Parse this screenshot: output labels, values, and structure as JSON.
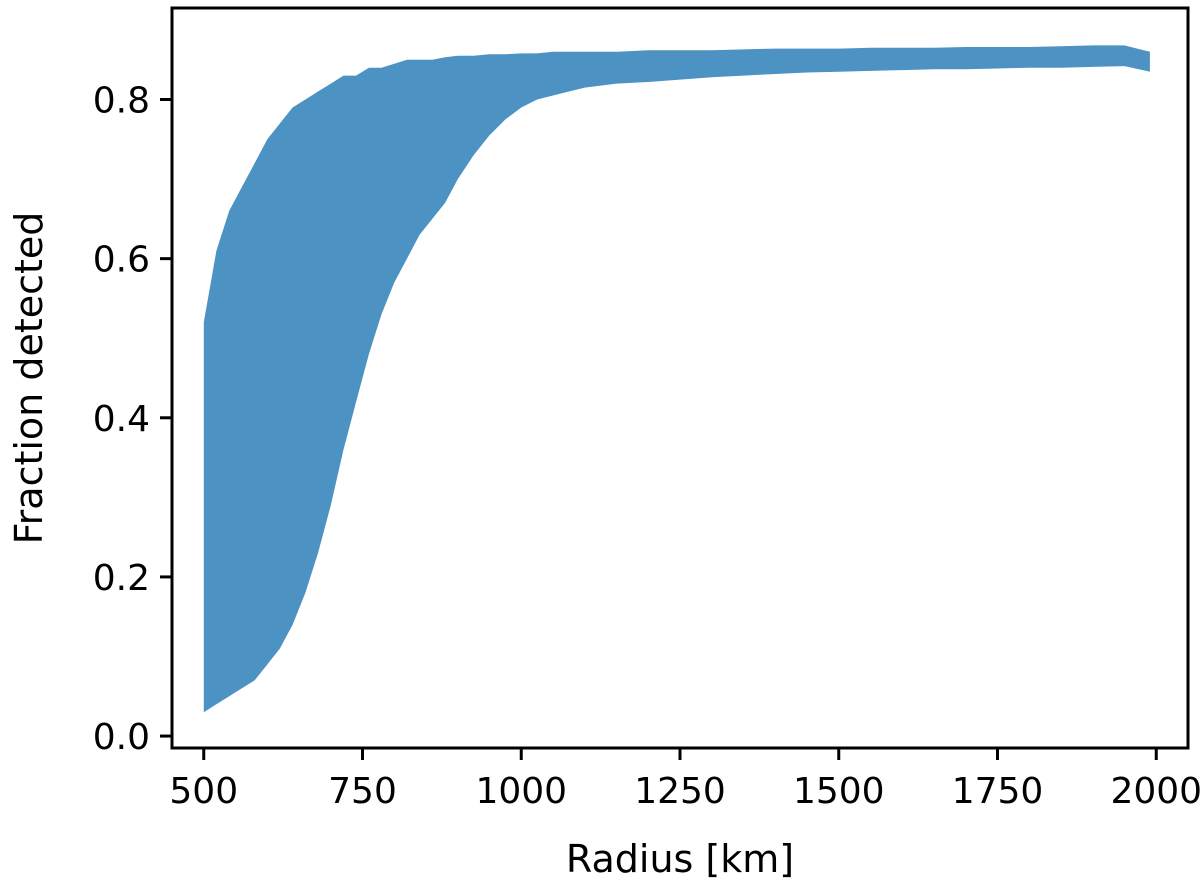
{
  "chart_data": {
    "type": "area",
    "title": "",
    "xlabel": "Radius [km]",
    "ylabel": "Fraction detected",
    "xlim": [
      450,
      2050
    ],
    "ylim": [
      -0.015,
      0.915
    ],
    "xticks": [
      "500",
      "750",
      "1000",
      "1250",
      "1500",
      "1750",
      "2000"
    ],
    "xtick_values": [
      500,
      750,
      1000,
      1250,
      1500,
      1750,
      2000
    ],
    "yticks": [
      "0.0",
      "0.2",
      "0.4",
      "0.6",
      "0.8"
    ],
    "ytick_values": [
      0.0,
      0.2,
      0.4,
      0.6,
      0.8
    ],
    "grid": false,
    "legend": "none",
    "fill_color": "#4c92c3",
    "band": {
      "x": [
        500,
        520,
        540,
        560,
        580,
        600,
        620,
        640,
        660,
        680,
        700,
        720,
        740,
        760,
        780,
        800,
        820,
        840,
        860,
        880,
        900,
        925,
        950,
        975,
        1000,
        1025,
        1050,
        1075,
        1100,
        1150,
        1200,
        1250,
        1300,
        1350,
        1400,
        1450,
        1500,
        1550,
        1600,
        1650,
        1700,
        1750,
        1800,
        1850,
        1900,
        1950,
        1990
      ],
      "upper": [
        0.52,
        0.61,
        0.66,
        0.69,
        0.72,
        0.75,
        0.77,
        0.79,
        0.8,
        0.81,
        0.82,
        0.83,
        0.83,
        0.84,
        0.84,
        0.845,
        0.85,
        0.85,
        0.85,
        0.853,
        0.855,
        0.855,
        0.857,
        0.857,
        0.858,
        0.858,
        0.86,
        0.86,
        0.86,
        0.86,
        0.862,
        0.862,
        0.862,
        0.863,
        0.864,
        0.864,
        0.864,
        0.865,
        0.865,
        0.865,
        0.866,
        0.866,
        0.866,
        0.867,
        0.868,
        0.868,
        0.86
      ],
      "lower": [
        0.03,
        0.04,
        0.05,
        0.06,
        0.07,
        0.09,
        0.11,
        0.14,
        0.18,
        0.23,
        0.29,
        0.36,
        0.42,
        0.48,
        0.53,
        0.57,
        0.6,
        0.63,
        0.65,
        0.67,
        0.7,
        0.73,
        0.755,
        0.775,
        0.79,
        0.8,
        0.805,
        0.81,
        0.815,
        0.82,
        0.822,
        0.825,
        0.828,
        0.83,
        0.832,
        0.834,
        0.835,
        0.836,
        0.837,
        0.838,
        0.838,
        0.839,
        0.84,
        0.84,
        0.841,
        0.842,
        0.835
      ]
    }
  }
}
